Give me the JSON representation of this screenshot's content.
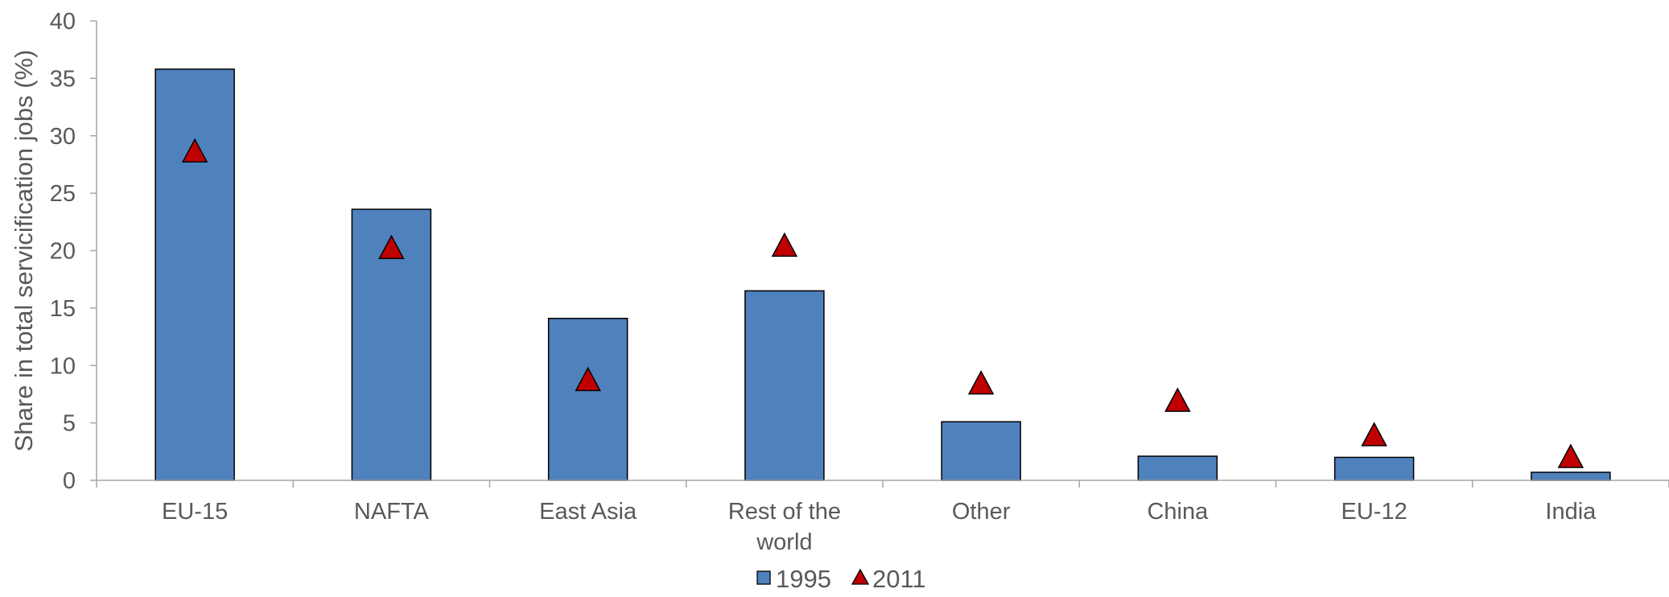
{
  "chart_data": {
    "type": "bar",
    "title": "",
    "xlabel": "",
    "ylabel": "Share in total servicification jobs (%)",
    "ylim": [
      0,
      40
    ],
    "yticks": [
      0,
      5,
      10,
      15,
      20,
      25,
      30,
      35,
      40
    ],
    "categories": [
      [
        "EU-15"
      ],
      [
        "NAFTA"
      ],
      [
        "East Asia"
      ],
      [
        "Rest of the",
        "world"
      ],
      [
        "Other"
      ],
      [
        "China"
      ],
      [
        "EU-12"
      ],
      [
        "India"
      ]
    ],
    "series": [
      {
        "name": "1995",
        "type": "bar",
        "color": "#4f81bd",
        "values": [
          35.8,
          23.6,
          14.1,
          16.5,
          5.1,
          2.1,
          2.0,
          0.7
        ]
      },
      {
        "name": "2011",
        "type": "marker-triangle",
        "color": "#c00000",
        "values": [
          28.7,
          20.3,
          8.8,
          20.5,
          8.5,
          7.0,
          4.0,
          2.1
        ]
      }
    ],
    "grid": false,
    "legend_position": "bottom-center"
  }
}
